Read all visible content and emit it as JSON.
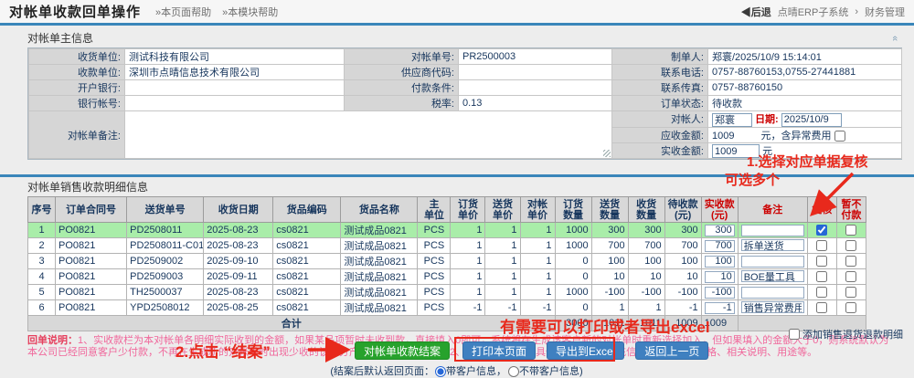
{
  "header": {
    "title": "对帐单收款回单操作",
    "help_page": "»本页面帮助",
    "help_module": "»本模块帮助",
    "back": "◀后退",
    "system": "点晴ERP子系统",
    "crumb_sep": "›",
    "module": "财务管理"
  },
  "main_info": {
    "section_title": "对帐单主信息",
    "receiver_label": "收货单位:",
    "receiver": "测试科技有限公司",
    "payee_label": "收款单位:",
    "payee": "深圳市点晴信息技术有限公司",
    "bank_label": "开户银行:",
    "bank": "",
    "account_label": "银行帐号:",
    "account": "",
    "remark_label": "对帐单备注:",
    "stmt_no_label": "对帐单号:",
    "stmt_no": "PR2500003",
    "supplier_code_label": "供应商代码:",
    "supplier_code": "",
    "pay_terms_label": "付款条件:",
    "pay_terms": "",
    "tax_label": "税率:",
    "tax": "0.13",
    "maker_label": "制单人:",
    "maker": "郑寰/2025/10/9 15:14:01",
    "phone_label": "联系电话:",
    "phone": "0757-88760153,0755-27441881",
    "fax_label": "联系传真:",
    "fax": "0757-88760150",
    "status_label": "订单状态:",
    "status": "待收款",
    "checker_label": "对帐人:",
    "checker": "郑寰",
    "date_label": "日期:",
    "date": "2025/10/9",
    "receivable_label": "应收金额:",
    "receivable": "1009",
    "receivable_suffix": "元，含异常费用",
    "received_label": "实收金额:",
    "received": "1009",
    "yuan": "元"
  },
  "detail": {
    "section_title": "对帐单销售收款明细信息",
    "columns": [
      "序号",
      "订单合同号",
      "送货单号",
      "收货日期",
      "货品编码",
      "货品名称",
      "主\n单位",
      "订货\n单价",
      "送货\n单价",
      "对帐\n单价",
      "订货\n数量",
      "送货\n数量",
      "收货\n数量",
      "待收款\n(元)",
      "实收款\n(元)",
      "备注",
      "复核",
      "暂不\n付款"
    ],
    "rows": [
      {
        "no": "1",
        "po": "PO0821",
        "dn": "PD2508011",
        "date": "2025-08-23",
        "code": "cs0821",
        "name": "测试成品0821",
        "unit": "PCS",
        "op": "1",
        "dp": "1",
        "sp": "1",
        "oq": "1000",
        "dq": "300",
        "rq": "300",
        "due": "300",
        "paid": "300",
        "remark": "",
        "review": true,
        "hold": false,
        "highlight": true
      },
      {
        "no": "2",
        "po": "PO0821",
        "dn": "PD2508011-C01",
        "date": "2025-08-23",
        "code": "cs0821",
        "name": "测试成品0821",
        "unit": "PCS",
        "op": "1",
        "dp": "1",
        "sp": "1",
        "oq": "1000",
        "dq": "700",
        "rq": "700",
        "due": "700",
        "paid": "700",
        "remark": "拆单送货",
        "review": false,
        "hold": false,
        "highlight": false
      },
      {
        "no": "3",
        "po": "PO0821",
        "dn": "PD2509002",
        "date": "2025-09-10",
        "code": "cs0821",
        "name": "测试成品0821",
        "unit": "PCS",
        "op": "1",
        "dp": "1",
        "sp": "1",
        "oq": "0",
        "dq": "100",
        "rq": "100",
        "due": "100",
        "paid": "100",
        "remark": "",
        "review": false,
        "hold": false,
        "highlight": false
      },
      {
        "no": "4",
        "po": "PO0821",
        "dn": "PD2509003",
        "date": "2025-09-11",
        "code": "cs0821",
        "name": "测试成品0821",
        "unit": "PCS",
        "op": "1",
        "dp": "1",
        "sp": "1",
        "oq": "0",
        "dq": "10",
        "rq": "10",
        "due": "10",
        "paid": "10",
        "remark": "BOE量工具",
        "review": false,
        "hold": false,
        "highlight": false
      },
      {
        "no": "5",
        "po": "PO0821",
        "dn": "TH2500037",
        "date": "2025-08-23",
        "code": "cs0821",
        "name": "测试成品0821",
        "unit": "PCS",
        "op": "1",
        "dp": "1",
        "sp": "1",
        "oq": "1000",
        "dq": "-100",
        "rq": "-100",
        "due": "-100",
        "paid": "-100",
        "remark": "",
        "review": false,
        "hold": false,
        "highlight": false
      },
      {
        "no": "6",
        "po": "PO0821",
        "dn": "YPD2508012",
        "date": "2025-08-25",
        "code": "cs0821",
        "name": "测试成品0821",
        "unit": "PCS",
        "op": "-1",
        "dp": "-1",
        "sp": "-1",
        "oq": "0",
        "dq": "1",
        "rq": "1",
        "due": "-1",
        "paid": "-1",
        "remark": "销售异常费用",
        "review": false,
        "hold": false,
        "highlight": false
      }
    ],
    "total": {
      "label": "合计",
      "oq": "3000",
      "dq": "1011",
      "rq": "1011",
      "due": "1009",
      "paid": "1009"
    }
  },
  "notes": {
    "prefix": "回单说明：",
    "body": "1、实收款栏为本对帐单各明细实际收到的金额，如果某品项暂时未收到款，直接填入0即可，系统将在生成该客户新的对帐单时重新选择加入，但如果填入的金额大于0，则系统默认为本公司已经同意客户少付款，不再在生成新的对帐单时出现少收的该部分产品及未收完之款项。2、备注栏填写产品具体收款方面的补充信息，例如产品规格、相关说明、用途等。"
  },
  "annotations": {
    "a1_line1": "1.选择对应单据复核",
    "a1_line2": "可选多个",
    "a2": "2.点击 “结案”",
    "a3": "有需要可以打印或者导出excel",
    "red": "#e8291c"
  },
  "footer": {
    "addon_label": "添加销售退货退款明细",
    "btn_close": "对帐单收款结案",
    "btn_print": "打印本页面",
    "btn_excel": "导出到Excel",
    "btn_back": "返回上一页",
    "radio_prefix": "(结案后默认返回页面：",
    "radio_with": "带客户信息，",
    "radio_without": "不带客户信息)"
  },
  "colors": {
    "accent_blue": "#3a86ba",
    "status_magenta": "#e800e8",
    "highlight_green": "#a9eda9",
    "button_green": "#27a22c",
    "button_blue": "#3f80c0"
  }
}
